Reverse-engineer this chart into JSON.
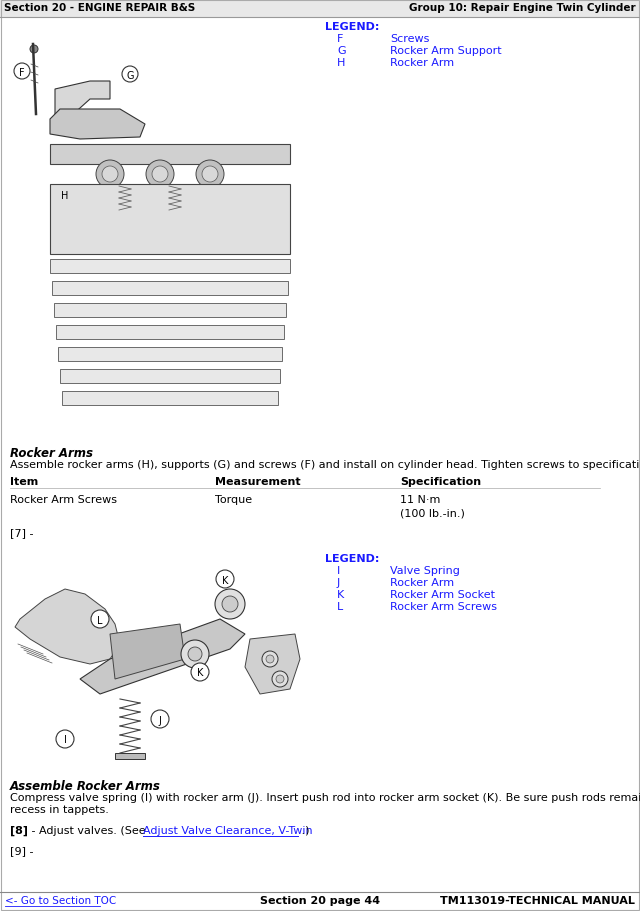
{
  "header_left": "Section 20 - ENGINE REPAIR B&S",
  "header_right": "Group 10: Repair Engine Twin Cylinder",
  "footer_left": "<- Go to Section TOC",
  "footer_center": "Section 20 page 44",
  "footer_right": "TM113019-TECHNICAL MANUAL",
  "legend1_title": "LEGEND:",
  "legend1_items": [
    [
      "F",
      "Screws"
    ],
    [
      "G",
      "Rocker Arm Support"
    ],
    [
      "H",
      "Rocker Arm"
    ]
  ],
  "legend2_title": "LEGEND:",
  "legend2_items": [
    [
      "I",
      "Valve Spring"
    ],
    [
      "J",
      "Rocker Arm"
    ],
    [
      "K",
      "Rocker Arm Socket"
    ],
    [
      "L",
      "Rocker Arm Screws"
    ]
  ],
  "section_title1": "Rocker Arms",
  "para1": "Assemble rocker arms (H), supports (G) and screws (F) and install on cylinder head. Tighten screws to specification.",
  "table_headers": [
    "Item",
    "Measurement",
    "Specification"
  ],
  "table_row": [
    "Rocker Arm Screws",
    "Torque",
    "11 N·m"
  ],
  "table_row2": [
    "",
    "",
    "(100 lb.-in.)"
  ],
  "marker7": "[7] -",
  "section_title2": "Assemble Rocker Arms",
  "para2a": "Compress valve spring (I) with rocker arm (J). Insert push rod into rocker arm socket (K). Be sure push rods remain seated in",
  "para2b": "recess in tappets.",
  "marker8_pre": "[8] - Adjust valves. (See ",
  "marker8_link": "Adjust Valve Clearance, V-Twin",
  "marker8_post": " .)",
  "marker9": "[9] -",
  "blue_color": "#1a1aff",
  "link_color": "#1a1aff",
  "bg_color": "#ffffff",
  "text_color": "#000000",
  "header_bg": "#e0e0e0"
}
